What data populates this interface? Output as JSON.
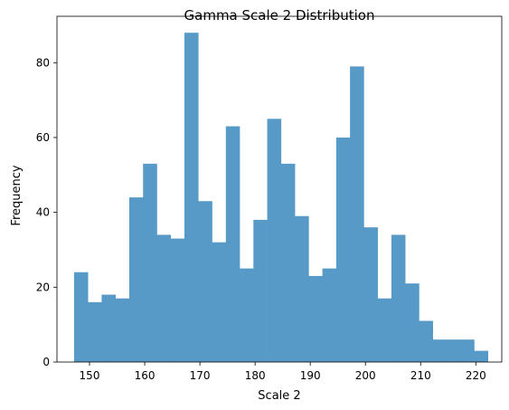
{
  "chart_data": {
    "type": "bar",
    "title": "Gamma Scale 2 Distribution",
    "xlabel": "Scale 2",
    "ylabel": "Frequency",
    "xlim": [
      144.1,
      224.7
    ],
    "ylim": [
      0,
      92.4
    ],
    "bin_edges": [
      147.2,
      149.7,
      152.2,
      154.7,
      157.2,
      159.7,
      162.2,
      164.7,
      167.2,
      169.7,
      172.2,
      174.7,
      177.2,
      179.7,
      182.2,
      184.7,
      187.2,
      189.7,
      192.2,
      194.7,
      197.2,
      199.7,
      202.2,
      204.7,
      207.2,
      209.7,
      212.2,
      214.7,
      217.2,
      219.7,
      222.2
    ],
    "values": [
      24,
      16,
      18,
      17,
      44,
      53,
      34,
      33,
      88,
      43,
      32,
      63,
      25,
      38,
      65,
      53,
      39,
      23,
      25,
      60,
      79,
      36,
      17,
      34,
      21,
      11,
      6,
      6,
      6,
      3
    ],
    "xticks": [
      150,
      160,
      170,
      180,
      190,
      200,
      210,
      220
    ],
    "xtick_labels": [
      "150",
      "160",
      "170",
      "180",
      "190",
      "200",
      "210",
      "220"
    ],
    "yticks": [
      0,
      20,
      40,
      60,
      80
    ],
    "ytick_labels": [
      "0",
      "20",
      "40",
      "60",
      "80"
    ],
    "bar_color": "#5799c7",
    "grid": false,
    "legend": "none"
  }
}
